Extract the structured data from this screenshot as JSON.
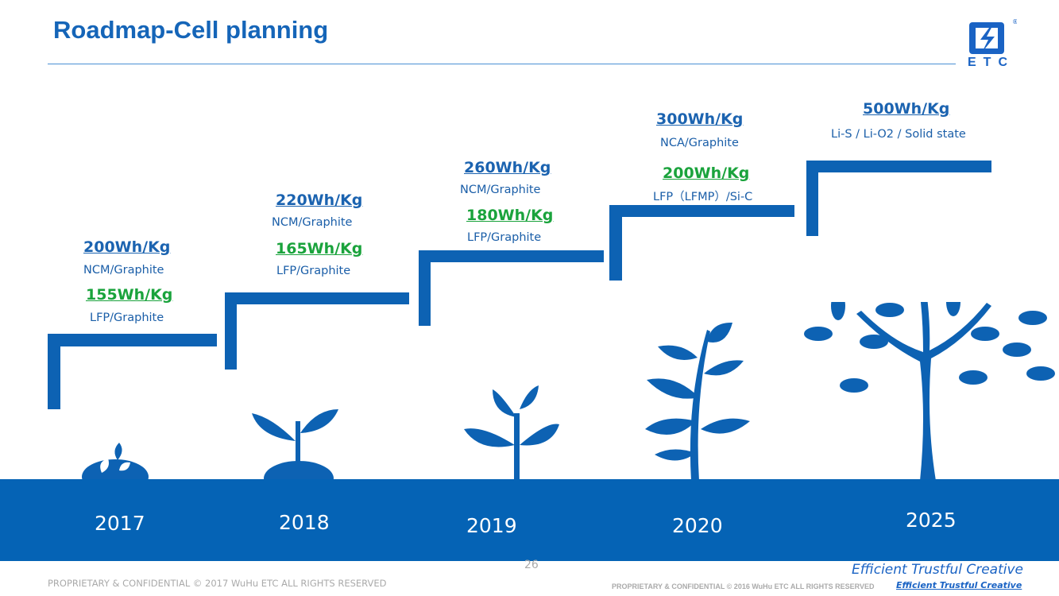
{
  "title": "Roadmap-Cell planning",
  "logo": {
    "text": "ETC",
    "mark": "®"
  },
  "colors": {
    "primary": "#0d62b3",
    "green": "#1aa33c",
    "band": "#0563b5"
  },
  "stages": [
    {
      "year": "2017",
      "specs": [
        {
          "energy": "200Wh/Kg",
          "chem": "NCM/Graphite",
          "color": "blue"
        },
        {
          "energy": "155Wh/Kg",
          "chem": "LFP/Graphite",
          "color": "green"
        }
      ]
    },
    {
      "year": "2018",
      "specs": [
        {
          "energy": "220Wh/Kg",
          "chem": "NCM/Graphite",
          "color": "blue"
        },
        {
          "energy": "165Wh/Kg",
          "chem": "LFP/Graphite",
          "color": "green"
        }
      ]
    },
    {
      "year": "2019",
      "specs": [
        {
          "energy": "260Wh/Kg",
          "chem": "NCM/Graphite",
          "color": "blue"
        },
        {
          "energy": "180Wh/Kg",
          "chem": "LFP/Graphite",
          "color": "green"
        }
      ]
    },
    {
      "year": "2020",
      "specs": [
        {
          "energy": "300Wh/Kg",
          "chem": "NCA/Graphite",
          "color": "blue"
        },
        {
          "energy": "200Wh/Kg",
          "chem": "LFP（LFMP）/Si-C",
          "color": "green"
        }
      ]
    },
    {
      "year": "2025",
      "specs": [
        {
          "energy": "500Wh/Kg",
          "chem": "Li-S / Li-O2 / Solid state",
          "color": "blue"
        }
      ]
    }
  ],
  "footer": {
    "page": "26",
    "left": "PROPRIETARY & CONFIDENTIAL  © 2017 WuHu ETC ALL RIGHTS RESERVED",
    "right": "PROPRIETARY & CONFIDENTIAL © 2016 WuHu ETC ALL RIGHTS RESERVED",
    "slogan": "Efficient  Trustful  Creative",
    "slogan_small": "Efficient  Trustful  Creative"
  }
}
